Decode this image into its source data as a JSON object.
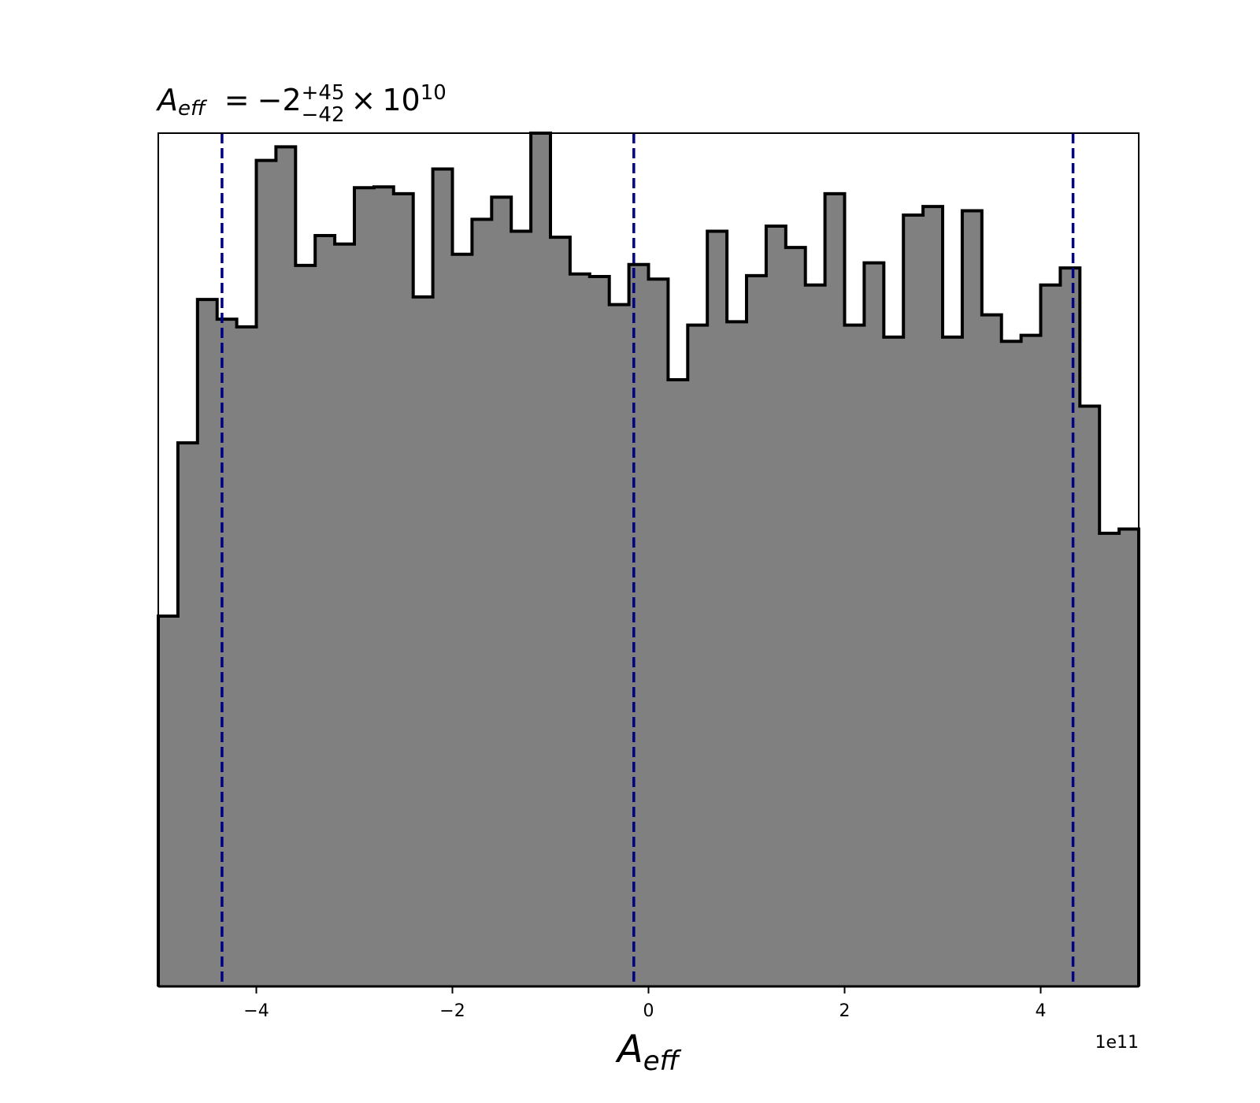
{
  "chart_data": {
    "type": "histogram",
    "title": {
      "symbol": "A",
      "symbol_sub": "eff",
      "equals": "=",
      "value": "−2",
      "upper": "+45",
      "lower": "−42",
      "times": "×",
      "base": "10",
      "exponent": "10"
    },
    "xlabel": {
      "symbol": "A",
      "symbol_sub": "eff"
    },
    "x_offset_label": "1e11",
    "x_ticks": [
      -4,
      -2,
      0,
      2,
      4
    ],
    "x_tick_labels": [
      "−4",
      "−2",
      "0",
      "2",
      "4"
    ],
    "xlim": [
      -5,
      5
    ],
    "ylim": [
      0,
      1
    ],
    "y_ticks_shown": false,
    "grid": false,
    "bin_edges": [
      -5.0,
      -4.8,
      -4.6,
      -4.4,
      -4.2,
      -4.0,
      -3.8,
      -3.6,
      -3.4,
      -3.2,
      -3.0,
      -2.8,
      -2.6,
      -2.4,
      -2.2,
      -2.0,
      -1.8,
      -1.6,
      -1.4,
      -1.2,
      -1.0,
      -0.8,
      -0.6,
      -0.4,
      -0.2,
      0.0,
      0.2,
      0.4,
      0.6,
      0.8,
      1.0,
      1.2,
      1.4,
      1.6,
      1.8,
      2.0,
      2.2,
      2.4,
      2.6,
      2.8,
      3.0,
      3.2,
      3.4,
      3.6,
      3.8,
      4.0,
      4.2,
      4.4,
      4.6,
      4.8,
      5.0
    ],
    "bin_heights": [
      0.434,
      0.637,
      0.805,
      0.782,
      0.773,
      0.968,
      0.984,
      0.845,
      0.88,
      0.87,
      0.936,
      0.937,
      0.929,
      0.808,
      0.958,
      0.858,
      0.899,
      0.925,
      0.885,
      1.0,
      0.878,
      0.835,
      0.832,
      0.799,
      0.846,
      0.829,
      0.711,
      0.775,
      0.885,
      0.779,
      0.833,
      0.891,
      0.866,
      0.822,
      0.929,
      0.775,
      0.848,
      0.761,
      0.904,
      0.914,
      0.761,
      0.909,
      0.787,
      0.756,
      0.763,
      0.822,
      0.842,
      0.68,
      0.531,
      0.536
    ],
    "vertical_lines": [
      -4.35,
      -0.15,
      4.33
    ],
    "colors": {
      "fill": "#808080",
      "edge": "#000000",
      "vlines": "#000080",
      "axes": "#000000"
    }
  }
}
